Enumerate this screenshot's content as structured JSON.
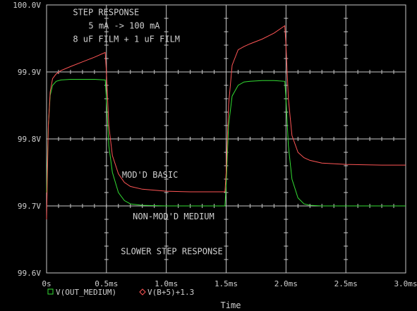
{
  "chart_data": {
    "type": "line",
    "xlabel": "Time",
    "ylabel": "",
    "xlim": [
      0,
      3.0
    ],
    "ylim": [
      99.6,
      100.0
    ],
    "x_ticks": [
      0,
      0.5,
      1.0,
      1.5,
      2.0,
      2.5,
      3.0
    ],
    "x_tick_labels": [
      "0s",
      "0.5ms",
      "1.0ms",
      "1.5ms",
      "2.0ms",
      "2.5ms",
      "3.0ms"
    ],
    "y_ticks": [
      99.6,
      99.7,
      99.8,
      99.9,
      100.0
    ],
    "y_tick_labels": [
      "99.6V",
      "99.7V",
      "99.8V",
      "99.9V",
      "100.0V"
    ],
    "grid": true,
    "legend_position": "bottom-left",
    "background": "#000000",
    "grid_color": "#c8c8c8",
    "annotations": [
      {
        "text": "STEP RESPONSE",
        "x": 0.22,
        "y": 99.985
      },
      {
        "text": "5 mA -> 100 mA",
        "x": 0.35,
        "y": 99.965
      },
      {
        "text": "8 uF FILM + 1 uF FILM",
        "x": 0.22,
        "y": 99.945
      },
      {
        "text": "MOD'D BASIC",
        "x": 0.63,
        "y": 99.742
      },
      {
        "text": "NON-MOD'D MEDIUM",
        "x": 0.72,
        "y": 99.68
      },
      {
        "text": "SLOWER STEP RESPONSE",
        "x": 0.62,
        "y": 99.628
      }
    ],
    "series": [
      {
        "name": "V(OUT_MEDIUM)",
        "color": "#33dd33",
        "marker": "square",
        "x": [
          0,
          0.015,
          0.03,
          0.05,
          0.08,
          0.12,
          0.2,
          0.3,
          0.4,
          0.49,
          0.5,
          0.52,
          0.55,
          0.6,
          0.65,
          0.7,
          0.8,
          1.0,
          1.2,
          1.4,
          1.49,
          1.5,
          1.52,
          1.55,
          1.6,
          1.65,
          1.7,
          1.8,
          1.9,
          1.99,
          2.0,
          2.02,
          2.05,
          2.1,
          2.15,
          2.2,
          2.3,
          2.5,
          2.8,
          3.0
        ],
        "values": [
          99.72,
          99.82,
          99.865,
          99.88,
          99.886,
          99.888,
          99.889,
          99.889,
          99.889,
          99.888,
          99.86,
          99.79,
          99.75,
          99.72,
          99.708,
          99.703,
          99.701,
          99.7,
          99.7,
          99.7,
          99.7,
          99.73,
          99.82,
          99.864,
          99.88,
          99.885,
          99.886,
          99.887,
          99.887,
          99.886,
          99.86,
          99.79,
          99.74,
          99.712,
          99.703,
          99.701,
          99.7,
          99.7,
          99.7,
          99.7
        ]
      },
      {
        "name": "V(B+5)+1.3",
        "color": "#ff5555",
        "marker": "diamond",
        "x": [
          0,
          0.015,
          0.03,
          0.05,
          0.08,
          0.12,
          0.2,
          0.3,
          0.4,
          0.49,
          0.5,
          0.52,
          0.55,
          0.6,
          0.65,
          0.7,
          0.8,
          1.0,
          1.2,
          1.4,
          1.49,
          1.5,
          1.52,
          1.55,
          1.6,
          1.65,
          1.7,
          1.8,
          1.9,
          1.99,
          2.0,
          2.02,
          2.05,
          2.1,
          2.15,
          2.2,
          2.3,
          2.5,
          2.8,
          3.0
        ],
        "values": [
          99.68,
          99.82,
          99.87,
          99.89,
          99.897,
          99.902,
          99.908,
          99.915,
          99.922,
          99.929,
          99.9,
          99.82,
          99.775,
          99.748,
          99.735,
          99.729,
          99.725,
          99.722,
          99.721,
          99.721,
          99.721,
          99.75,
          99.85,
          99.91,
          99.933,
          99.938,
          99.942,
          99.949,
          99.958,
          99.969,
          99.94,
          99.86,
          99.805,
          99.78,
          99.772,
          99.768,
          99.764,
          99.762,
          99.761,
          99.761
        ]
      }
    ]
  }
}
